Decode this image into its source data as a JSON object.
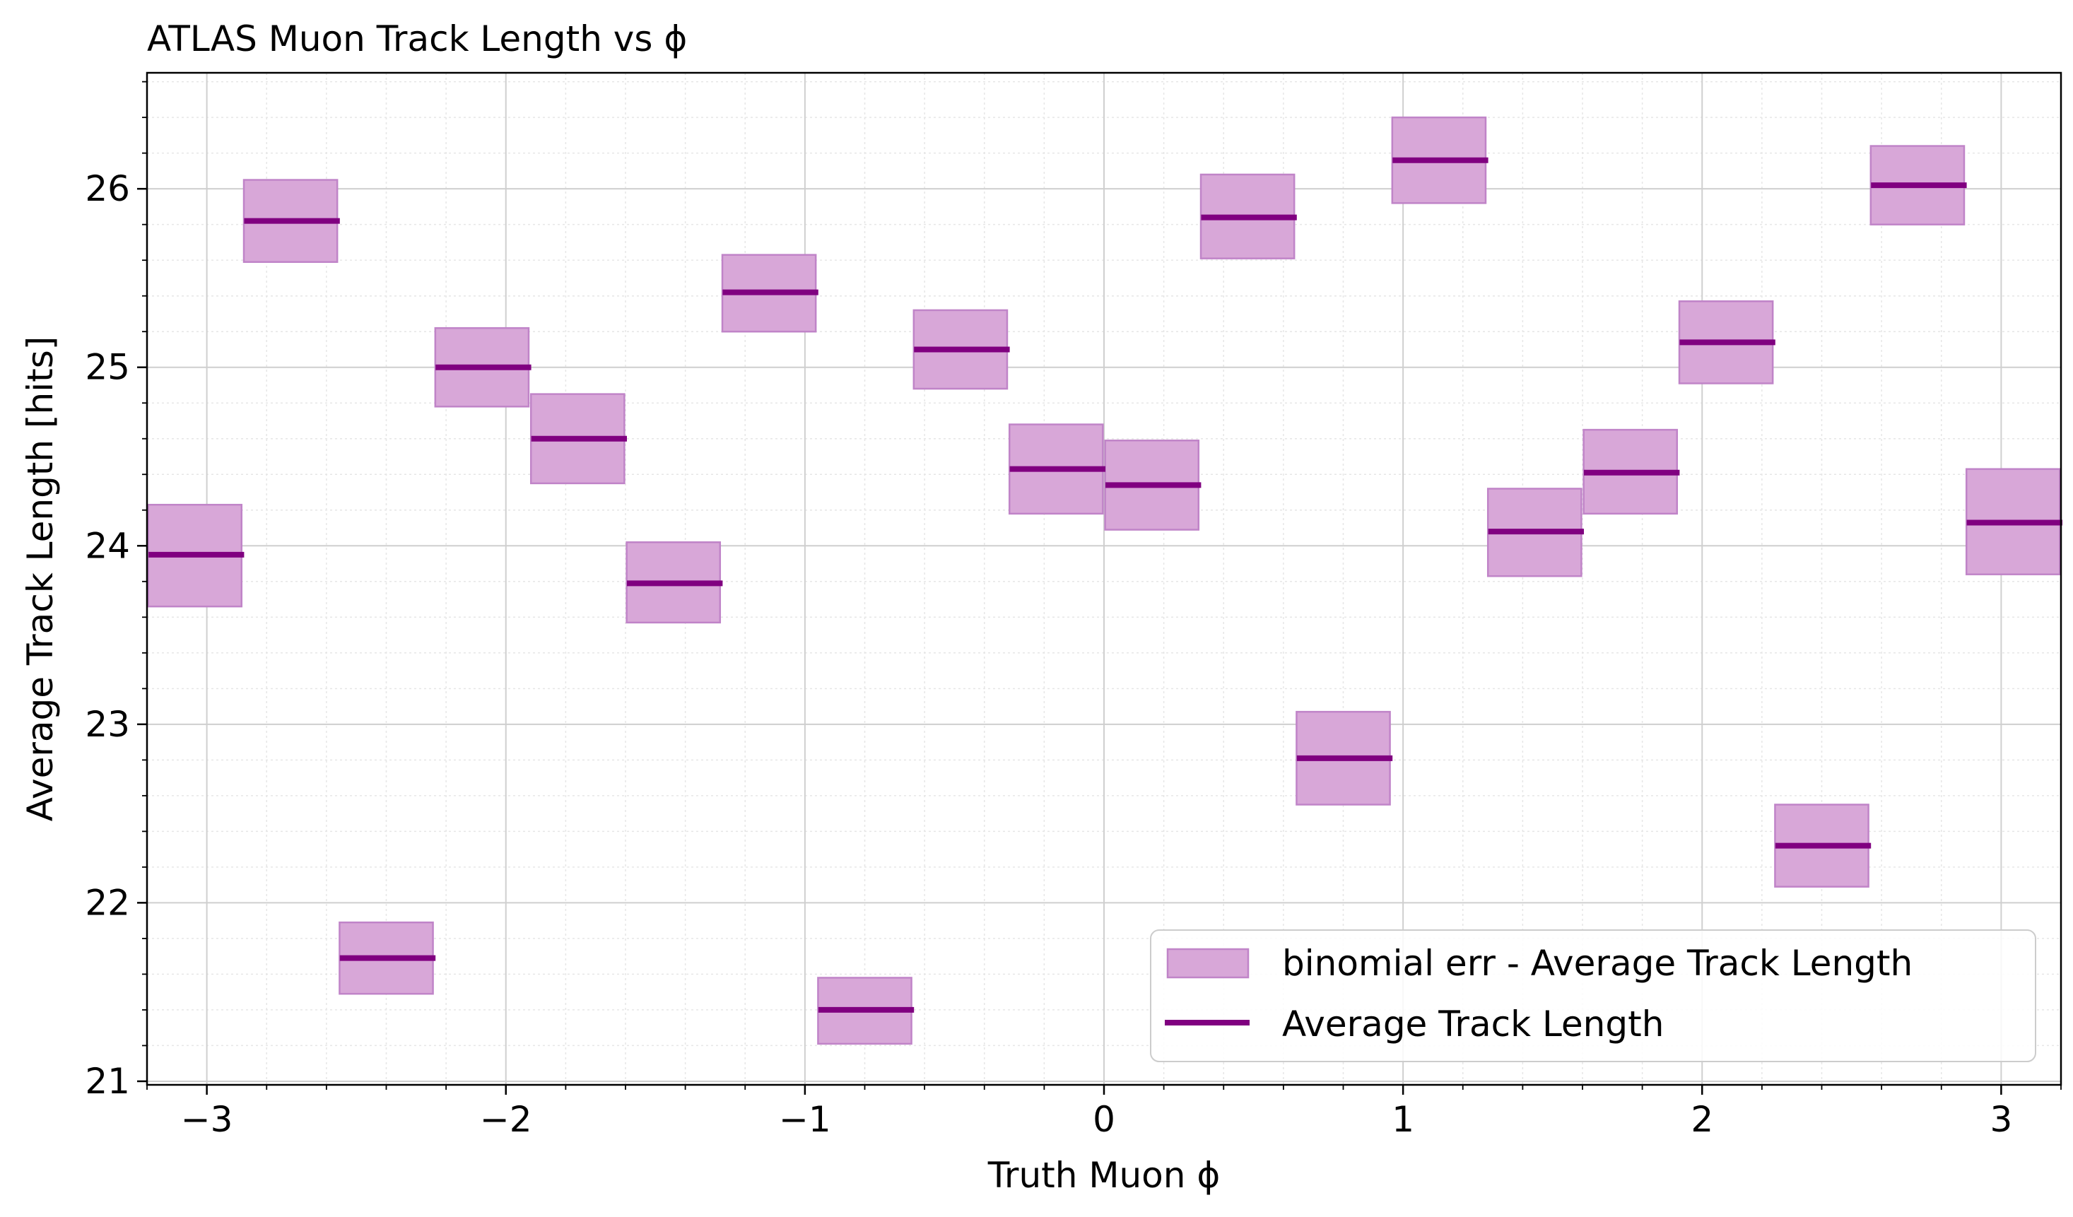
{
  "chart_data": {
    "type": "bar",
    "title": "ATLAS Muon Track Length vs ϕ",
    "xlabel": "Truth Muon ϕ",
    "ylabel": "Average Track Length [hits]",
    "xlim": [
      -3.2,
      3.2
    ],
    "ylim": [
      20.98,
      26.65
    ],
    "x_ticks": [
      -3,
      -2,
      -1,
      0,
      1,
      2,
      3
    ],
    "x_tick_labels": [
      "−3",
      "−2",
      "−1",
      "0",
      "1",
      "2",
      "3"
    ],
    "y_ticks": [
      21,
      22,
      23,
      24,
      25,
      26
    ],
    "y_tick_labels": [
      "21",
      "22",
      "23",
      "24",
      "25",
      "26"
    ],
    "grid": true,
    "minor_grid": true,
    "bin_edges": [
      -3.2,
      -2.88,
      -2.56,
      -2.24,
      -1.92,
      -1.6,
      -1.28,
      -0.96,
      -0.64,
      -0.32,
      0.0,
      0.32,
      0.64,
      0.96,
      1.28,
      1.6,
      1.92,
      2.24,
      2.56,
      2.88,
      3.2
    ],
    "series": [
      {
        "name": "Average Track Length",
        "color": "#800080",
        "values": [
          23.95,
          25.82,
          21.69,
          25.0,
          24.6,
          23.79,
          25.42,
          21.4,
          25.1,
          24.43,
          24.34,
          25.84,
          22.81,
          26.16,
          24.08,
          24.41,
          25.14,
          22.32,
          26.02,
          24.13
        ]
      },
      {
        "name": "binomial err - Average Track Length",
        "color": "#d8a7d8",
        "edge_color": "#c084c8",
        "lower": [
          23.66,
          25.59,
          21.49,
          24.78,
          24.35,
          23.57,
          25.2,
          21.21,
          24.88,
          24.18,
          24.09,
          25.61,
          22.55,
          25.92,
          23.83,
          24.18,
          24.91,
          22.09,
          25.8,
          23.84
        ],
        "upper": [
          24.23,
          26.05,
          21.89,
          25.22,
          24.85,
          24.02,
          25.63,
          21.58,
          25.32,
          24.68,
          24.59,
          26.08,
          23.07,
          26.4,
          24.32,
          24.65,
          25.37,
          22.55,
          26.24,
          24.43
        ]
      }
    ],
    "legend": {
      "position": "lower-right",
      "entries": [
        {
          "label": "binomial err - Average Track Length",
          "kind": "patch"
        },
        {
          "label": "Average Track Length",
          "kind": "line"
        }
      ]
    }
  }
}
